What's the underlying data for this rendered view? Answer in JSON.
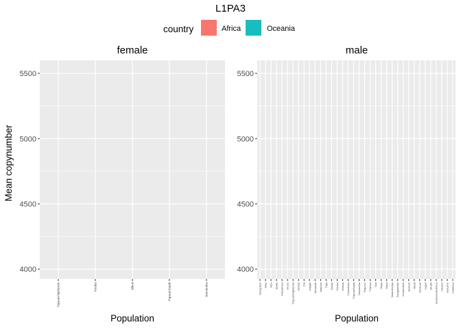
{
  "chart_data": {
    "type": "bar",
    "title": "L1PA3",
    "legend": {
      "title": "country",
      "placement": "top",
      "entries": [
        {
          "label": "Africa",
          "color": "#F8766D"
        },
        {
          "label": "Oceania",
          "color": "#1ABDBE"
        }
      ]
    },
    "ylabel": "Mean copynumber",
    "ylim": [
      3925,
      5600
    ],
    "y_ticks": [
      4000,
      4500,
      5000,
      5500
    ],
    "grid": true,
    "panels": [
      {
        "name": "female",
        "xlabel": "Population",
        "categories": [
          "PapuanHighlands",
          "Yoruba",
          "Mbuti",
          "PapuanSepik",
          "Mandenka"
        ]
      },
      {
        "name": "male",
        "xlabel": "Population",
        "categories": [
          "Mongolian",
          "Mixe",
          "Xibo",
          "Biaka",
          "Palestinian",
          "Druze",
          "PapuanHighlands",
          "Brahui",
          "Dai",
          "Adygei",
          "Mozabite",
          "Makrani",
          "Tujia",
          "Saami",
          "Yoruba",
          "Kalash",
          "Colombian",
          "PapuanSepik",
          "Mandenka",
          "Piapoco",
          "Pathan",
          "San",
          "Maya",
          "Yakut",
          "BantuKenya",
          "Bougainville",
          "Cambodian",
          "Balochi",
          "Mbuti",
          "Bedouin",
          "Uygur",
          "Sindhi",
          "BantuSouthAfrica",
          "Hazara",
          "Burusho",
          "Karitiana"
        ]
      }
    ]
  }
}
